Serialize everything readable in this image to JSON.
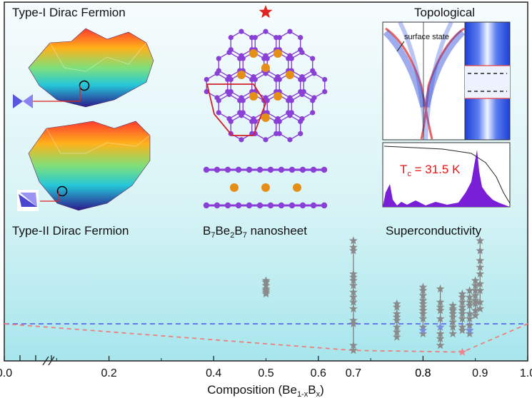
{
  "panels": {
    "type1": "Type-I Dirac Fermion",
    "type2": "Type-II Dirac Fermion",
    "nanosheet_prefix": "B",
    "nanosheet_sub1": "7",
    "nanosheet_mid": "Be",
    "nanosheet_sub2": "2",
    "nanosheet_suffix": "B",
    "nanosheet_sub3": "7",
    "nanosheet_tail": " nanosheet",
    "topological": "Topological",
    "surface_state": "surface state",
    "tc_prefix": "T",
    "tc_sub": "c",
    "tc_value": " = 31.5 K",
    "superconductivity": "Superconductivity"
  },
  "colors": {
    "star_gray": "#8a8a8a",
    "star_blue": "#7b8fe0",
    "star_pink": "#f47f86",
    "blue_line": "#5b6be8",
    "red_line": "#f07d7d",
    "highlight_star": "#e52222",
    "bg_top": "#f4fbfd",
    "bg_bottom": "#a9e8ee",
    "boron": "#8a3fd6",
    "beryllium": "#e58f16"
  },
  "chart_data": {
    "type": "scatter",
    "xlabel_prefix": "Composition (Be",
    "xlabel_sub1": "1-x",
    "xlabel_mid": "B",
    "xlabel_sub2": "x",
    "xlabel_suffix": ")",
    "ylabel": "",
    "xlim": [
      0.0,
      1.0
    ],
    "xticks": [
      "0.0",
      "0.2",
      "0.4",
      "0.6",
      "0.8",
      "1.0"
    ],
    "minor_xticks": [
      0.1,
      0.3,
      0.5,
      0.7,
      0.9
    ],
    "extra_xtick_labels": [
      {
        "x": 0.5,
        "label": "0.5"
      },
      {
        "x": 0.667,
        "label": "0.7"
      },
      {
        "x": 0.8,
        "label": "0.8"
      },
      {
        "x": 0.909,
        "label": "0.9"
      }
    ],
    "axis_break_near": 0.18,
    "left_marks": [
      0.03,
      0.06,
      0.09
    ],
    "hull_dashed": [
      {
        "x": 0.0,
        "y": 0.0
      },
      {
        "x": 0.667,
        "y": -0.16
      },
      {
        "x": 0.875,
        "y": -0.17
      },
      {
        "x": 1.0,
        "y": 0.0
      }
    ],
    "reference_dashed_y": 0.0,
    "series": [
      {
        "x": 0.5,
        "ys": [
          0.26,
          0.25,
          0.23,
          0.21,
          0.2,
          0.19,
          0.18
        ],
        "connected": false
      },
      {
        "x": 0.667,
        "ys": [
          0.5,
          0.46,
          0.44,
          0.3,
          0.28,
          0.26,
          0.23,
          0.19,
          0.16,
          0.13,
          0.09,
          0.02,
          0.0,
          -0.13,
          -0.16
        ],
        "connected": true
      },
      {
        "x": 0.75,
        "ys": [
          0.12,
          0.1,
          0.06,
          0.04,
          0.02,
          -0.02,
          -0.05,
          -0.08
        ],
        "connected": true
      },
      {
        "x": 0.8,
        "ys": [
          0.22,
          0.2,
          0.17,
          0.14,
          0.12,
          0.1,
          0.08,
          0.06,
          0.03,
          -0.02,
          -0.06
        ],
        "connected": true,
        "highlight": {
          "y": -0.04,
          "color": "blue"
        }
      },
      {
        "x": 0.833,
        "ys": [
          0.21,
          0.13,
          0.1,
          0.08,
          0.03,
          -0.02,
          -0.06,
          -0.09,
          -0.13
        ],
        "connected": true,
        "highlight": {
          "y": -0.02,
          "color": "blue"
        }
      },
      {
        "x": 0.857,
        "ys": [
          0.11,
          0.09,
          0.08,
          0.06,
          0.04,
          0.01,
          -0.02,
          -0.06
        ],
        "connected": true
      },
      {
        "x": 0.875,
        "ys": [
          0.18,
          0.16,
          0.13,
          0.1,
          0.08,
          0.06,
          0.03,
          -0.02,
          -0.04
        ],
        "connected": true,
        "highlight": {
          "y": -0.17,
          "color": "pink"
        }
      },
      {
        "x": 0.889,
        "ys": [
          0.2,
          0.16,
          0.13,
          0.11,
          0.06,
          0.03,
          -0.01,
          -0.04,
          -0.06
        ],
        "connected": true,
        "highlight": {
          "y": -0.04,
          "color": "blue"
        }
      },
      {
        "x": 0.9,
        "ys": [
          0.26,
          0.23,
          0.2,
          0.17,
          0.14,
          0.12,
          0.08,
          0.05
        ],
        "connected": true
      },
      {
        "x": 0.909,
        "ys": [
          0.5,
          0.44,
          0.38,
          0.34,
          0.3,
          0.24,
          0.2,
          0.13,
          0.09
        ],
        "connected": true
      }
    ],
    "highlight_star_x": 0.695
  }
}
